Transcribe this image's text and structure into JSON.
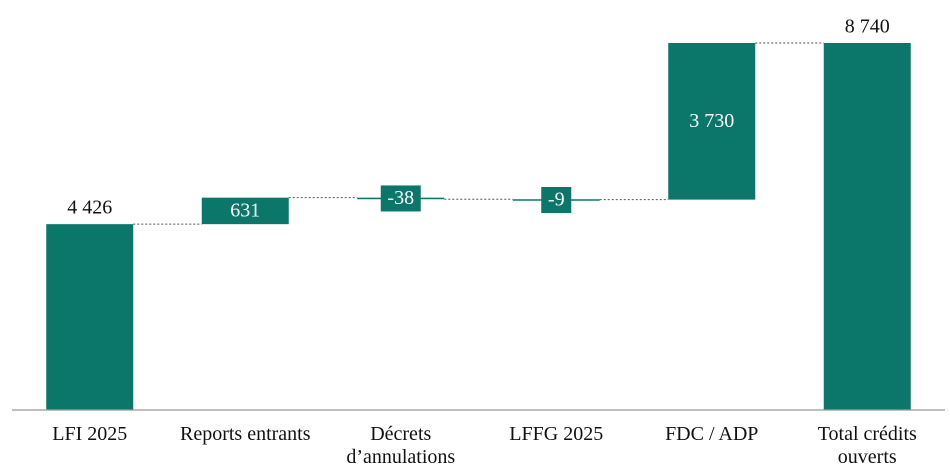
{
  "chart_data": {
    "type": "waterfall",
    "categories": [
      "LFI 2025",
      "Reports entrants",
      "Décrets d’annulations",
      "LFFG 2025",
      "FDC / ADP",
      "Total crédits ouverts"
    ],
    "values": [
      4426,
      631,
      -38,
      -9,
      3730,
      8740
    ],
    "value_labels": [
      "4 426",
      "631",
      "-38",
      "-9",
      "3 730",
      "8 740"
    ],
    "measures": [
      "absolute",
      "relative",
      "relative",
      "relative",
      "relative",
      "total"
    ],
    "color": "#0b776b"
  }
}
